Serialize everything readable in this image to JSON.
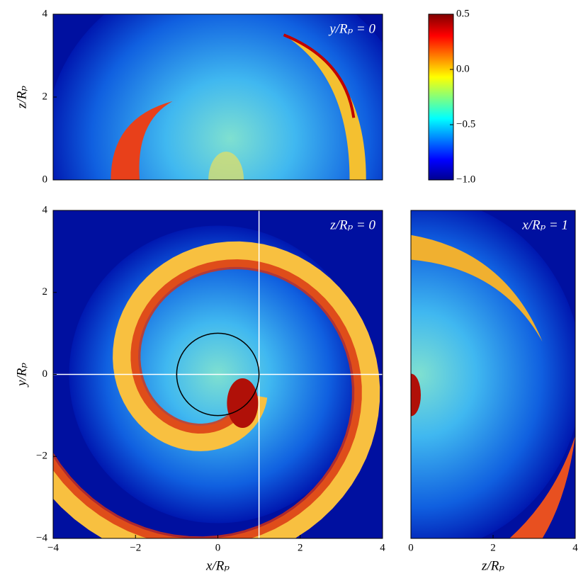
{
  "chart_data": [
    {
      "type": "heatmap",
      "annotation": "y/Rₚ = 0",
      "ylabel": "z/Rₚ",
      "xlim": [
        -4,
        4
      ],
      "ylim": [
        0,
        4
      ],
      "yticks": [
        0,
        2,
        4
      ]
    },
    {
      "type": "colorbar",
      "ylim": [
        -1,
        0.5
      ],
      "yticks": [
        0.5,
        {
          "value": 0,
          "label": "0.0"
        },
        {
          "value": -0.5,
          "label": "−0.5"
        },
        {
          "value": -1,
          "label": "−1.0"
        }
      ]
    },
    {
      "type": "heatmap",
      "annotation": "z/Rₚ = 0",
      "xlabel": "x/Rₚ",
      "ylabel": "y/Rₚ",
      "xlim": [
        -4,
        4
      ],
      "ylim": [
        -4,
        4
      ],
      "xticks": [
        {
          "value": -4,
          "label": "−4"
        },
        {
          "value": -2,
          "label": "−2"
        },
        0,
        2,
        4
      ],
      "yticks": [
        {
          "value": -4,
          "label": "−4"
        },
        {
          "value": -2,
          "label": "−2"
        },
        0,
        2,
        4
      ]
    },
    {
      "type": "heatmap",
      "annotation": "x/Rₚ = 1",
      "xlabel": "z/Rₚ",
      "xlim": [
        0,
        4
      ],
      "ylim": [
        -4,
        4
      ],
      "xticks": [
        0,
        2,
        4
      ]
    }
  ]
}
